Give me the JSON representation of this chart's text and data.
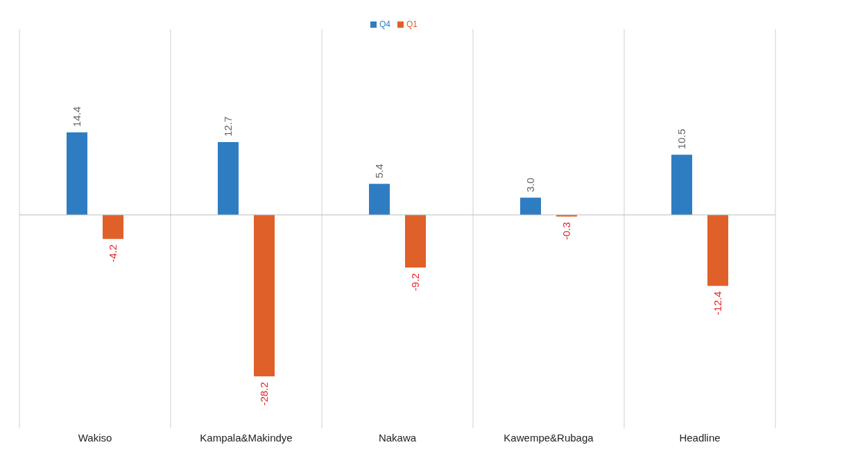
{
  "chart_data": {
    "type": "bar",
    "categories": [
      "Wakiso",
      "Kampala&Makindye",
      "Nakawa",
      "Kawempe&Rubaga",
      "Headline"
    ],
    "series": [
      {
        "name": "Q4",
        "color": "#2e7dc3",
        "values": [
          14.4,
          12.7,
          5.4,
          3.0,
          10.5
        ],
        "value_labels": [
          "14.4",
          "12.7",
          "5.4",
          "3.0",
          "10.5"
        ]
      },
      {
        "name": "Q1",
        "color": "#e0602a",
        "values": [
          -4.2,
          -28.2,
          -9.2,
          -0.3,
          -12.4
        ],
        "value_labels": [
          "-4.2",
          "-28.2",
          "-9.2",
          "-0.3",
          "-12.4"
        ]
      }
    ],
    "grid": "x",
    "legend": "top"
  }
}
